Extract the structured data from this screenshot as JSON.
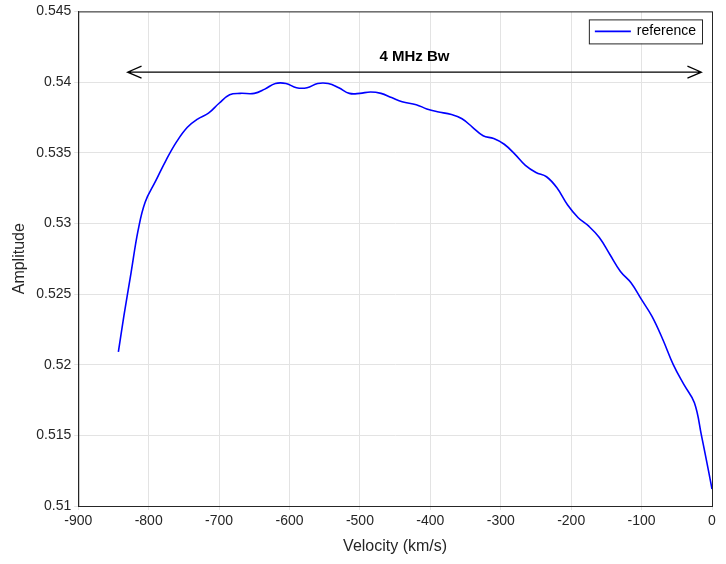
{
  "chart_data": {
    "type": "line",
    "x_label": "Velocity (km/s)",
    "y_label": "Amplitude",
    "xlim": [
      -900,
      0
    ],
    "xticks": [
      -900,
      -800,
      -700,
      -600,
      -500,
      -400,
      -300,
      -200,
      -100,
      0
    ],
    "ylim": [
      0.51,
      0.545
    ],
    "yticks": [
      0.51,
      0.515,
      0.52,
      0.525,
      0.53,
      0.535,
      0.54,
      0.545
    ],
    "grid": true,
    "legend": "upper right",
    "annotations": [
      {
        "text": "4 MHz Bw",
        "x_start": -830,
        "x_end": -15,
        "y": 0.5407
      }
    ],
    "x": [
      -843,
      -835,
      -825,
      -815,
      -805,
      -790,
      -775,
      -760,
      -745,
      -730,
      -715,
      -700,
      -685,
      -670,
      -650,
      -635,
      -620,
      -605,
      -590,
      -575,
      -560,
      -545,
      -530,
      -515,
      -500,
      -485,
      -470,
      -455,
      -440,
      -420,
      -405,
      -390,
      -370,
      -355,
      -340,
      -325,
      -310,
      -295,
      -280,
      -265,
      -250,
      -235,
      -220,
      -205,
      -190,
      -175,
      -160,
      -145,
      -130,
      -115,
      -100,
      -85,
      -70,
      -55,
      -40,
      -25,
      -15,
      -5,
      0
    ],
    "series": [
      {
        "name": "reference",
        "color": "#0000ff",
        "line_style": "solid",
        "values": [
          0.5209,
          0.5235,
          0.5265,
          0.5295,
          0.5315,
          0.533,
          0.5345,
          0.5358,
          0.5368,
          0.5374,
          0.5378,
          0.5385,
          0.5391,
          0.5392,
          0.5392,
          0.5395,
          0.5399,
          0.5399,
          0.5396,
          0.5396,
          0.5399,
          0.5399,
          0.5396,
          0.5392,
          0.5392,
          0.5393,
          0.5392,
          0.5389,
          0.5386,
          0.5384,
          0.5381,
          0.5379,
          0.5377,
          0.5374,
          0.5368,
          0.5362,
          0.536,
          0.5356,
          0.5349,
          0.5341,
          0.5336,
          0.5333,
          0.5325,
          0.5313,
          0.5304,
          0.5298,
          0.529,
          0.5278,
          0.5266,
          0.5258,
          0.5246,
          0.5234,
          0.5218,
          0.52,
          0.5186,
          0.5173,
          0.515,
          0.5125,
          0.5112
        ]
      }
    ]
  }
}
